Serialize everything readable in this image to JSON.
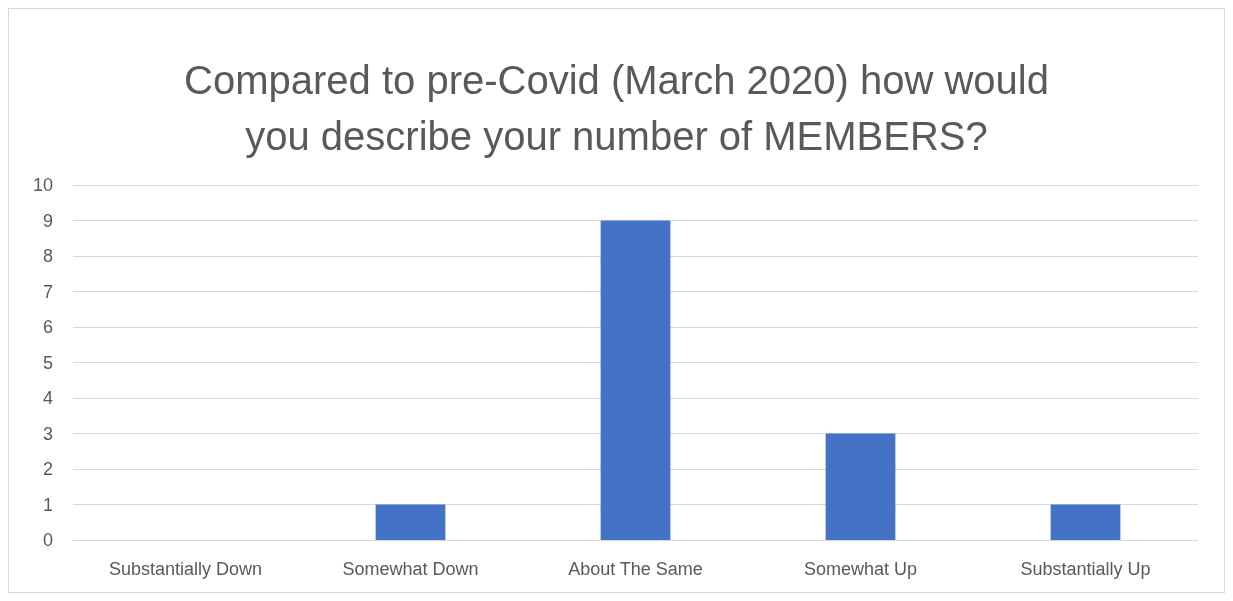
{
  "chart_data": {
    "type": "bar",
    "title": "Compared to pre-Covid (March 2020) how would\nyou describe your number of MEMBERS?",
    "categories": [
      "Substantially Down",
      "Somewhat Down",
      "About The Same",
      "Somewhat Up",
      "Substantially Up"
    ],
    "values": [
      0,
      1,
      9,
      3,
      1
    ],
    "color": "#4472c4",
    "ylim": [
      0,
      10
    ],
    "yticks": [
      0,
      1,
      2,
      3,
      4,
      5,
      6,
      7,
      8,
      9,
      10
    ],
    "grid": "y"
  }
}
